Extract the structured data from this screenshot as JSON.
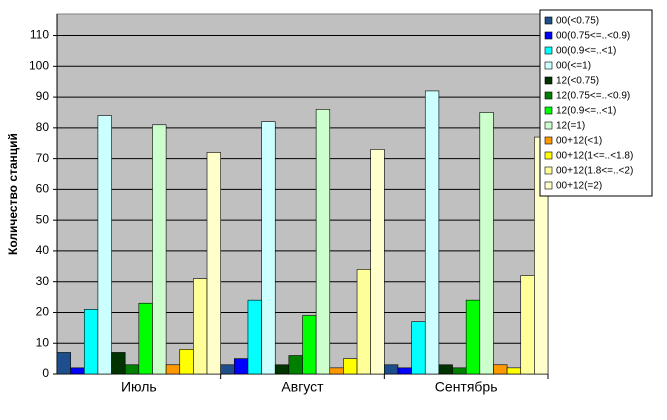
{
  "chart_data": {
    "type": "bar",
    "y_label": "Количество станций",
    "categories": [
      "Июль",
      "Август",
      "Сентябрь"
    ],
    "series": [
      {
        "name": "00(<0.75)",
        "color": "#1f4e8c",
        "values": [
          7,
          3,
          3
        ]
      },
      {
        "name": "00(0.75<=..<0.9)",
        "color": "#0000ff",
        "values": [
          2,
          5,
          2
        ]
      },
      {
        "name": "00(0.9<=..<1)",
        "color": "#00ffff",
        "values": [
          21,
          24,
          17
        ]
      },
      {
        "name": "00(<=1)",
        "color": "#ccffff",
        "values": [
          84,
          82,
          92
        ]
      },
      {
        "name": "12(<0.75)",
        "color": "#003300",
        "values": [
          7,
          3,
          3
        ]
      },
      {
        "name": "12(0.75<=..<0.9)",
        "color": "#008000",
        "values": [
          3,
          6,
          2
        ]
      },
      {
        "name": "12(0.9<=..<1)",
        "color": "#00ff00",
        "values": [
          23,
          19,
          24
        ]
      },
      {
        "name": "12(=1)",
        "color": "#ccffcc",
        "values": [
          81,
          86,
          85
        ]
      },
      {
        "name": "00+12(<1)",
        "color": "#ff9900",
        "values": [
          3,
          2,
          3
        ]
      },
      {
        "name": "00+12(1<=..<1.8)",
        "color": "#ffff00",
        "values": [
          8,
          5,
          2
        ]
      },
      {
        "name": "00+12(1.8<=..<2)",
        "color": "#ffff99",
        "values": [
          31,
          34,
          32
        ]
      },
      {
        "name": "00+12(=2)",
        "color": "#ffffcc",
        "values": [
          72,
          73,
          77
        ]
      }
    ],
    "ylim": [
      0,
      117
    ],
    "yticks": [
      0,
      10,
      20,
      30,
      40,
      50,
      60,
      70,
      80,
      90,
      100,
      110
    ],
    "grid": true,
    "legend": "top-right"
  }
}
